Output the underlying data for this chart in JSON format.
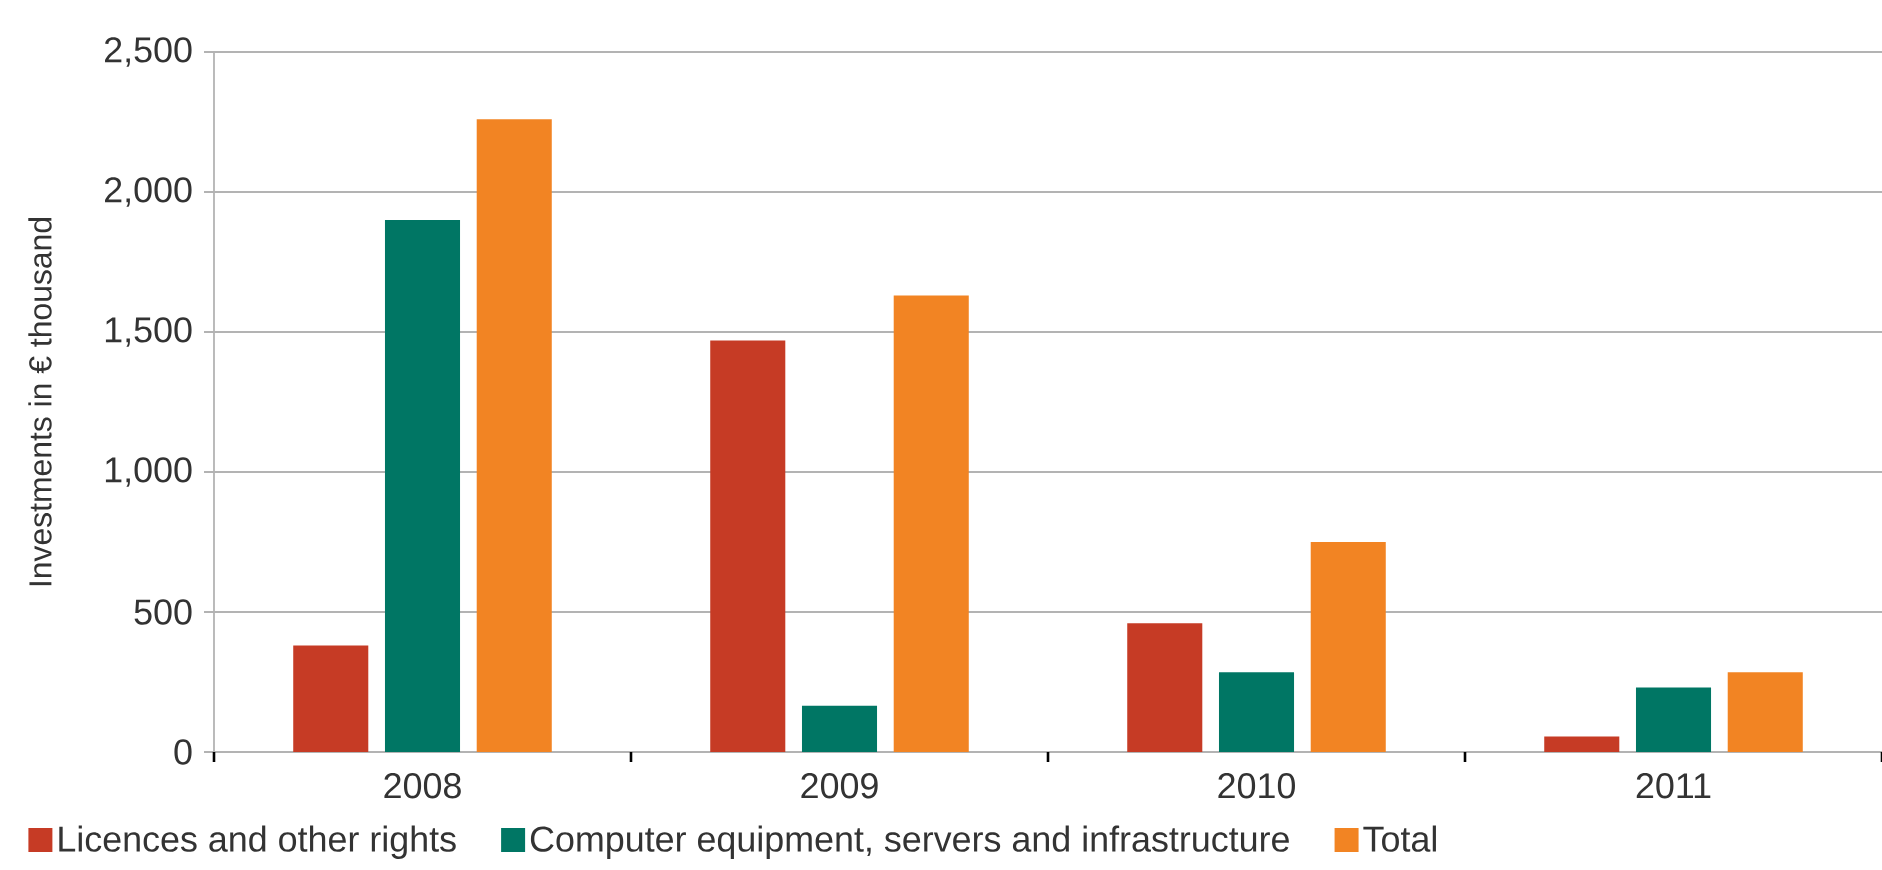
{
  "chart_data": {
    "type": "bar",
    "ylabel": "Investments in € thousand",
    "categories": [
      "2008",
      "2009",
      "2010",
      "2011"
    ],
    "series": [
      {
        "name": "Licences and other rights",
        "color": "#c63b25",
        "values": [
          380,
          1470,
          460,
          55
        ]
      },
      {
        "name": "Computer equipment, servers and infrastructure",
        "color": "#007664",
        "values": [
          1900,
          165,
          285,
          230
        ]
      },
      {
        "name": "Total",
        "color": "#f28423",
        "values": [
          2260,
          1630,
          750,
          285
        ]
      }
    ],
    "ylim": [
      0,
      2500
    ],
    "yticks": [
      0,
      500,
      {
        "value": 1000,
        "label": "1,000"
      },
      {
        "value": 1500,
        "label": "1,500"
      },
      {
        "value": 2000,
        "label": "2,000"
      },
      {
        "value": 2500,
        "label": "2,500"
      }
    ],
    "grid": "y",
    "legend": "bottom"
  }
}
